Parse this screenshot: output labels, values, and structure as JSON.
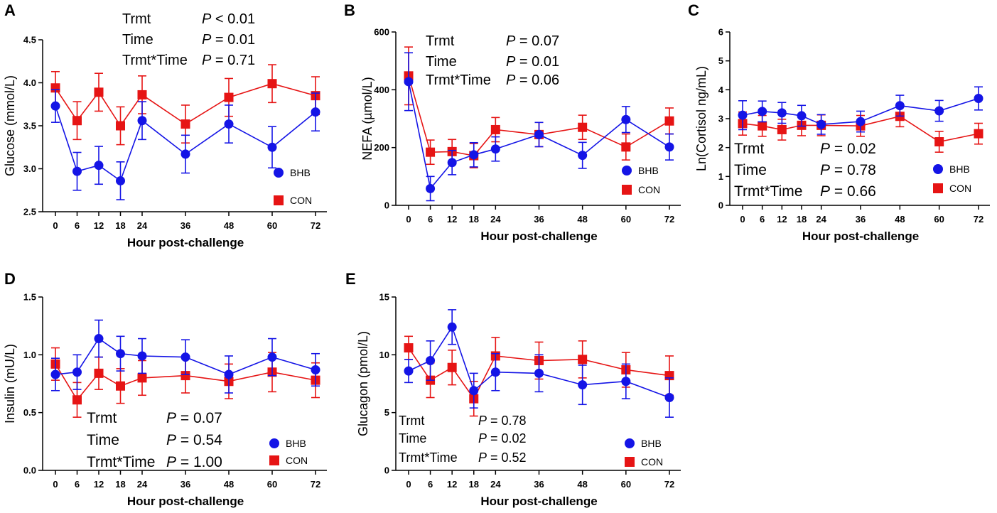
{
  "figure": {
    "x_title": "Hour post-challenge"
  },
  "colors": {
    "BHB": "#1414e6",
    "CON": "#e61414"
  },
  "chart_data": [
    {
      "panel": "A",
      "type": "line",
      "ylabel": "Glucose (mmol/L)",
      "xlabel": "Hour post-challenge",
      "x": [
        0,
        6,
        12,
        18,
        24,
        36,
        48,
        60,
        72
      ],
      "xticks": [
        "0",
        "6",
        "12",
        "18",
        "24",
        "36",
        "48",
        "60",
        "72"
      ],
      "ylim": [
        2.5,
        4.5
      ],
      "yticks": [
        "2.5",
        "3.0",
        "3.5",
        "4.0",
        "4.5"
      ],
      "series": [
        {
          "name": "BHB",
          "values": [
            3.73,
            2.97,
            3.04,
            2.86,
            3.56,
            3.17,
            3.52,
            3.25,
            3.66
          ],
          "errors": [
            0.19,
            0.22,
            0.22,
            0.22,
            0.22,
            0.22,
            0.22,
            0.24,
            0.22
          ]
        },
        {
          "name": "CON",
          "values": [
            3.94,
            3.56,
            3.89,
            3.5,
            3.86,
            3.52,
            3.83,
            3.99,
            3.85
          ],
          "errors": [
            0.19,
            0.22,
            0.22,
            0.22,
            0.22,
            0.22,
            0.22,
            0.22,
            0.22
          ]
        }
      ],
      "stats": [
        {
          "label": "Trmt",
          "prefix": "",
          "op": " < ",
          "value": "0.01"
        },
        {
          "label": "Time",
          "prefix": "",
          "op": " = ",
          "value": "0.01"
        },
        {
          "label": "Trmt*Time",
          "prefix": " ",
          "op": " = ",
          "value": "0.71"
        }
      ],
      "legend": [
        "BHB",
        "CON"
      ]
    },
    {
      "panel": "B",
      "type": "line",
      "ylabel": "NEFA (µmol/L)",
      "xlabel": "Hour post-challenge",
      "x": [
        0,
        6,
        12,
        18,
        24,
        36,
        48,
        60,
        72
      ],
      "xticks": [
        "0",
        "6",
        "12",
        "18",
        "24",
        "36",
        "48",
        "60",
        "72"
      ],
      "ylim": [
        0,
        600
      ],
      "yticks": [
        "0",
        "200",
        "400",
        "600"
      ],
      "series": [
        {
          "name": "BHB",
          "values": [
            428,
            58,
            148,
            175,
            195,
            245,
            173,
            297,
            202
          ],
          "errors": [
            100,
            42,
            42,
            42,
            42,
            42,
            45,
            45,
            45
          ]
        },
        {
          "name": "CON",
          "values": [
            448,
            184,
            186,
            172,
            262,
            245,
            270,
            202,
            292
          ],
          "errors": [
            100,
            42,
            42,
            42,
            42,
            42,
            42,
            45,
            45
          ]
        }
      ],
      "stats": [
        {
          "label": "Trmt",
          "prefix": "",
          "op": " = ",
          "value": "0.07"
        },
        {
          "label": "Time",
          "prefix": "",
          "op": " = ",
          "value": "0.01"
        },
        {
          "label": "Trmt*Time",
          "prefix": " ",
          "op": " = ",
          "value": "0.06"
        }
      ],
      "legend": [
        "BHB",
        "CON"
      ]
    },
    {
      "panel": "C",
      "type": "line",
      "ylabel": "Ln(Cortisol ng/mL)",
      "xlabel": "Hour post-challenge",
      "x": [
        0,
        6,
        12,
        18,
        24,
        36,
        48,
        60,
        72
      ],
      "xticks": [
        "0",
        "6",
        "12",
        "18",
        "24",
        "36",
        "48",
        "60",
        "72"
      ],
      "ylim": [
        0,
        6
      ],
      "yticks": [
        "0",
        "1",
        "2",
        "3",
        "4",
        "5",
        "6"
      ],
      "series": [
        {
          "name": "BHB",
          "values": [
            3.12,
            3.25,
            3.2,
            3.1,
            2.8,
            2.9,
            3.45,
            3.27,
            3.7
          ],
          "errors": [
            0.5,
            0.36,
            0.36,
            0.36,
            0.34,
            0.36,
            0.36,
            0.36,
            0.4
          ]
        },
        {
          "name": "CON",
          "values": [
            2.83,
            2.75,
            2.62,
            2.77,
            2.77,
            2.75,
            3.08,
            2.2,
            2.48
          ],
          "errors": [
            0.4,
            0.36,
            0.36,
            0.36,
            0.36,
            0.36,
            0.36,
            0.36,
            0.36
          ]
        }
      ],
      "stats": [
        {
          "label": "Trmt",
          "prefix": "",
          "op": " = ",
          "value": "0.02"
        },
        {
          "label": "Time",
          "prefix": "",
          "op": " = ",
          "value": "0.78"
        },
        {
          "label": "Trmt*Time",
          "prefix": " ",
          "op": " = ",
          "value": "0.66"
        }
      ],
      "legend": [
        "BHB",
        "CON"
      ]
    },
    {
      "panel": "D",
      "type": "line",
      "ylabel": "Insulin (mU/L)",
      "xlabel": "Hour post-challenge",
      "x": [
        0,
        6,
        12,
        18,
        24,
        36,
        48,
        60,
        72
      ],
      "xticks": [
        "0",
        "6",
        "12",
        "18",
        "24",
        "36",
        "48",
        "60",
        "72"
      ],
      "ylim": [
        0.0,
        1.5
      ],
      "yticks": [
        "0.0",
        "0.5",
        "1.0",
        "1.5"
      ],
      "series": [
        {
          "name": "BHB",
          "values": [
            0.83,
            0.85,
            1.14,
            1.01,
            0.99,
            0.98,
            0.83,
            0.98,
            0.87
          ],
          "errors": [
            0.14,
            0.15,
            0.16,
            0.15,
            0.15,
            0.15,
            0.16,
            0.16,
            0.14
          ]
        },
        {
          "name": "CON",
          "values": [
            0.92,
            0.61,
            0.84,
            0.73,
            0.8,
            0.82,
            0.77,
            0.85,
            0.78
          ],
          "errors": [
            0.14,
            0.15,
            0.14,
            0.15,
            0.15,
            0.15,
            0.15,
            0.17,
            0.15
          ]
        }
      ],
      "stats": [
        {
          "label": "Trmt",
          "prefix": "",
          "op": " = ",
          "value": "0.07"
        },
        {
          "label": "Time",
          "prefix": "",
          "op": " = ",
          "value": "0.54"
        },
        {
          "label": "Trmt*Time",
          "prefix": " ",
          "op": " = ",
          "value": "1.00"
        }
      ],
      "legend": [
        "BHB",
        "CON"
      ]
    },
    {
      "panel": "E",
      "type": "line",
      "ylabel": "Glucagon (pmol/L)",
      "xlabel": "Hour post-challenge",
      "x": [
        0,
        6,
        12,
        18,
        24,
        36,
        48,
        60,
        72
      ],
      "xticks": [
        "0",
        "6",
        "12",
        "18",
        "24",
        "36",
        "48",
        "60",
        "72"
      ],
      "ylim": [
        0,
        15
      ],
      "yticks": [
        "0",
        "5",
        "10",
        "15"
      ],
      "series": [
        {
          "name": "BHB",
          "values": [
            8.6,
            9.5,
            12.4,
            6.9,
            8.5,
            8.4,
            7.4,
            7.7,
            6.3
          ],
          "errors": [
            1.0,
            1.7,
            1.5,
            1.5,
            1.6,
            1.6,
            1.7,
            1.5,
            1.7
          ]
        },
        {
          "name": "CON",
          "values": [
            10.6,
            7.8,
            8.9,
            6.2,
            9.9,
            9.5,
            9.6,
            8.7,
            8.2
          ],
          "errors": [
            1.0,
            1.5,
            1.5,
            1.5,
            1.6,
            1.6,
            1.6,
            1.5,
            1.7
          ]
        }
      ],
      "stats": [
        {
          "label": "Trmt",
          "prefix": "",
          "op": " = ",
          "value": "0.78"
        },
        {
          "label": "Time",
          "prefix": "",
          "op": " = ",
          "value": "0.02"
        },
        {
          "label": "Trmt*Time",
          "prefix": " ",
          "op": " = ",
          "value": "0.52"
        }
      ],
      "legend": [
        "BHB",
        "CON"
      ]
    }
  ]
}
